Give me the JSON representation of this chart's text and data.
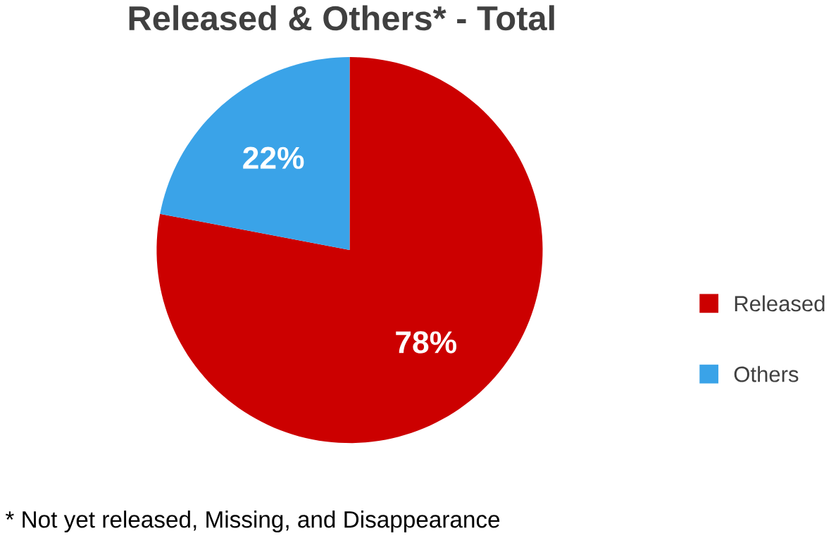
{
  "chart_data": {
    "type": "pie",
    "title": "Released & Others* - Total",
    "categories": [
      "Released",
      "Others"
    ],
    "values": [
      78,
      22
    ],
    "value_labels": [
      "78%",
      "22%"
    ],
    "colors": [
      "#cc0000",
      "#3aa3e8"
    ],
    "legend": "right",
    "annotations": [
      "* Not yet released, Missing, and  Disappearance"
    ]
  }
}
